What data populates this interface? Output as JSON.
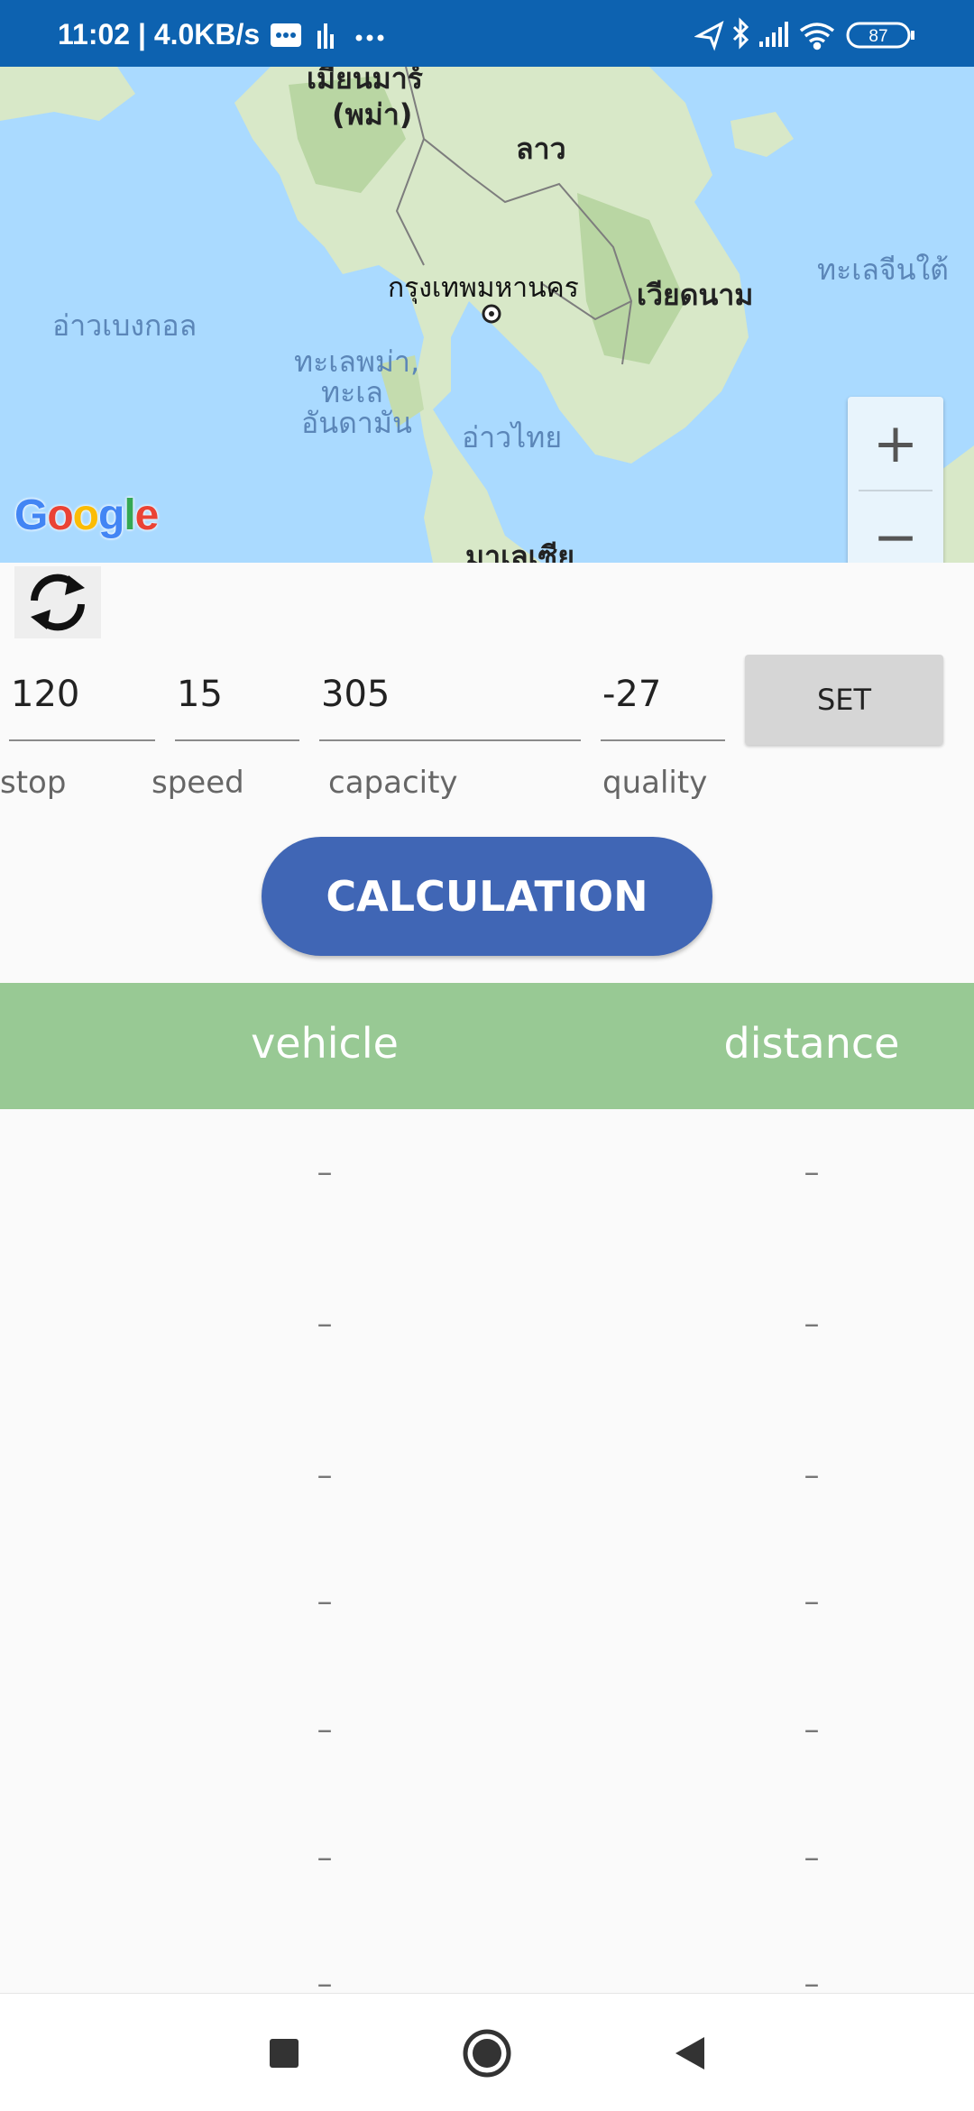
{
  "status_bar": {
    "time_speed": "11:02 | 4.0KB/s",
    "more": "···",
    "battery": "87",
    "icons": [
      "message-icon",
      "signal-bars-icon",
      "location-icon",
      "bluetooth-icon",
      "cellular-icon",
      "wifi-icon",
      "battery-icon"
    ]
  },
  "map": {
    "labels": {
      "myanmar": "เมียนมาร์",
      "myanmar_alt": "(พม่า)",
      "laos": "ลาว",
      "bangkok": "กรุงเทพมหานคร",
      "vietnam": "เวียดนาม",
      "south_china_sea": "ทะเลจีนใต้",
      "bay_of_bengal": "อ่าวเบงกอล",
      "andaman_1": "ทะเลพม่า,",
      "andaman_2": "ทะเล",
      "andaman_3": "อันดามัน",
      "gulf_thailand": "อ่าวไทย",
      "malaysia": "มาเลเซีย"
    },
    "zoom_in": "+",
    "zoom_out": "−",
    "logo": "Google"
  },
  "controls": {
    "stop_value": "120",
    "speed_value": "15",
    "capacity_value": "305",
    "quality_value": "-27",
    "stop_label": "stop",
    "speed_label": "speed",
    "capacity_label": "capacity",
    "quality_label": "quality",
    "set_label": "SET",
    "calculation_label": "CALCULATION"
  },
  "table": {
    "headers": {
      "vehicle": "vehicle",
      "distance": "distance"
    },
    "rows": [
      {
        "vehicle": "–",
        "distance": "–"
      },
      {
        "vehicle": "–",
        "distance": "–"
      },
      {
        "vehicle": "–",
        "distance": "–"
      },
      {
        "vehicle": "–",
        "distance": "–"
      },
      {
        "vehicle": "–",
        "distance": "–"
      },
      {
        "vehicle": "–",
        "distance": "–"
      },
      {
        "vehicle": "–",
        "distance": "–"
      }
    ]
  },
  "colors": {
    "status_bar": "#0d62b0",
    "water": "#aadaff",
    "land": "#d8e8c8",
    "calc_button": "#4066b5",
    "table_header": "#98c994"
  }
}
